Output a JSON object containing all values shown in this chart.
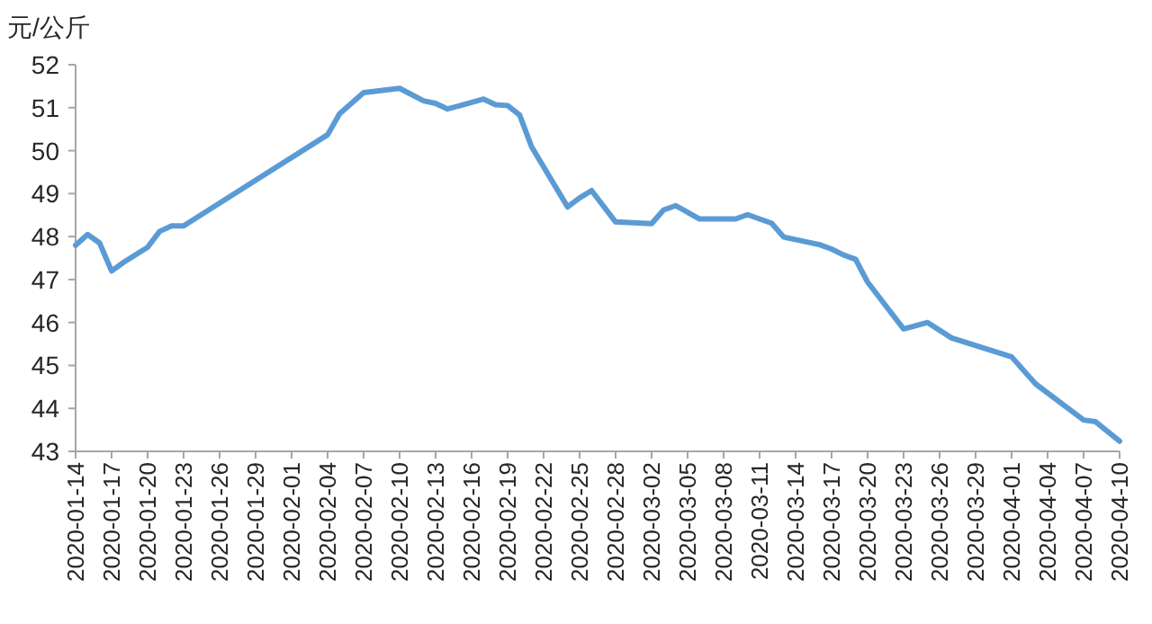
{
  "chart_data": {
    "type": "line",
    "ylabel": "元/公斤",
    "x": [
      "2020-01-14",
      "2020-01-15",
      "2020-01-16",
      "2020-01-17",
      "2020-01-18",
      "2020-01-20",
      "2020-01-21",
      "2020-01-22",
      "2020-01-23",
      "2020-02-04",
      "2020-02-05",
      "2020-02-07",
      "2020-02-10",
      "2020-02-12",
      "2020-02-13",
      "2020-02-14",
      "2020-02-17",
      "2020-02-18",
      "2020-02-19",
      "2020-02-20",
      "2020-02-21",
      "2020-02-24",
      "2020-02-25",
      "2020-02-26",
      "2020-02-28",
      "2020-03-02",
      "2020-03-03",
      "2020-03-04",
      "2020-03-06",
      "2020-03-09",
      "2020-03-10",
      "2020-03-12",
      "2020-03-13",
      "2020-03-16",
      "2020-03-17",
      "2020-03-18",
      "2020-03-19",
      "2020-03-20",
      "2020-03-23",
      "2020-03-25",
      "2020-03-27",
      "2020-04-01",
      "2020-04-03",
      "2020-04-07",
      "2020-04-08",
      "2020-04-10"
    ],
    "series": [
      {
        "color": "#5b9bd5",
        "values": [
          47.8,
          48.05,
          47.85,
          47.2,
          47.4,
          47.75,
          48.12,
          48.25,
          48.25,
          50.37,
          50.86,
          51.35,
          51.45,
          51.16,
          51.1,
          50.97,
          51.2,
          51.07,
          51.05,
          50.83,
          50.09,
          48.69,
          48.9,
          49.07,
          48.34,
          48.3,
          48.62,
          48.72,
          48.41,
          48.41,
          48.51,
          48.31,
          47.99,
          47.81,
          47.71,
          47.57,
          47.47,
          46.94,
          45.85,
          46.0,
          45.64,
          45.2,
          44.57,
          43.73,
          43.69,
          43.24
        ]
      }
    ],
    "xlim": [
      "2020-01-14",
      "2020-04-10"
    ],
    "xticks": [
      "2020-01-14",
      "2020-01-17",
      "2020-01-20",
      "2020-01-23",
      "2020-01-26",
      "2020-01-29",
      "2020-02-01",
      "2020-02-04",
      "2020-02-07",
      "2020-02-10",
      "2020-02-13",
      "2020-02-16",
      "2020-02-19",
      "2020-02-22",
      "2020-02-25",
      "2020-02-28",
      "2020-03-02",
      "2020-03-05",
      "2020-03-08",
      "2020-03-11",
      "2020-03-14",
      "2020-03-17",
      "2020-03-20",
      "2020-03-23",
      "2020-03-26",
      "2020-03-29",
      "2020-04-01",
      "2020-04-04",
      "2020-04-07",
      "2020-04-10"
    ],
    "ylim": [
      43,
      52
    ],
    "yticks": [
      43,
      44,
      45,
      46,
      47,
      48,
      49,
      50,
      51,
      52
    ]
  }
}
